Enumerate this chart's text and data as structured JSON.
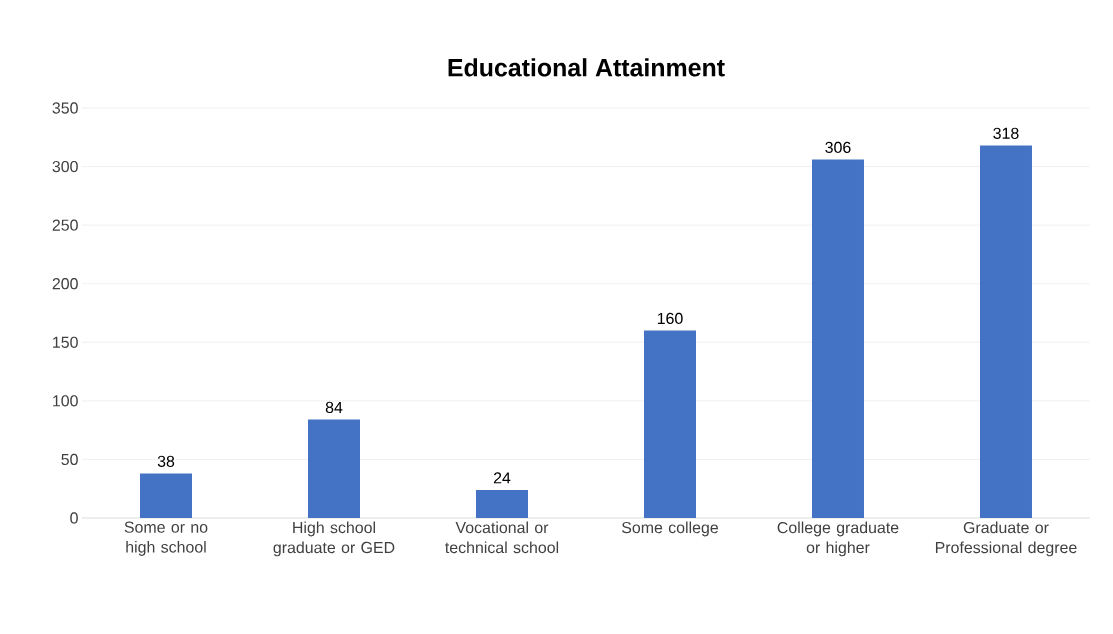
{
  "chart_data": {
    "type": "bar",
    "title": "Educational Attainment",
    "categories": [
      "Some or no high school",
      "High school graduate or GED",
      "Vocational or technical school",
      "Some college",
      "College graduate or higher",
      "Graduate or Professional degree"
    ],
    "values": [
      38,
      84,
      24,
      160,
      306,
      318
    ],
    "color": "#4472c4",
    "ylim": [
      0,
      350
    ],
    "yticks": [
      0,
      50,
      100,
      150,
      200,
      250,
      300,
      350
    ],
    "grid": "y",
    "data_labels": true
  }
}
